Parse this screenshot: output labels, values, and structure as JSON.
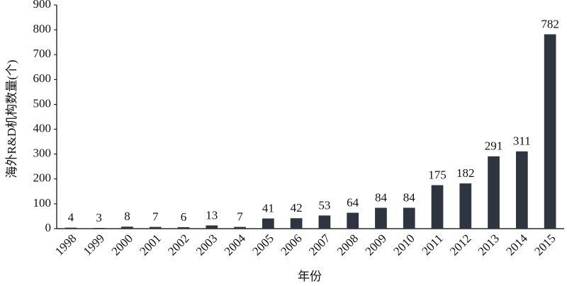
{
  "chart_data": {
    "type": "bar",
    "x_label": "年份",
    "y_label": "海外R&D机构数量(个)",
    "categories": [
      "1998",
      "1999",
      "2000",
      "2001",
      "2002",
      "2003",
      "2004",
      "2005",
      "2006",
      "2007",
      "2008",
      "2009",
      "2010",
      "2011",
      "2012",
      "2013",
      "2014",
      "2015"
    ],
    "values": [
      4,
      3,
      8,
      7,
      6,
      13,
      7,
      41,
      42,
      53,
      64,
      84,
      84,
      175,
      182,
      291,
      311,
      782
    ],
    "color": "#2e353e",
    "ylim": [
      0,
      900
    ],
    "yticks": [
      0,
      100,
      200,
      300,
      400,
      500,
      600,
      700,
      800,
      900
    ],
    "grid": false
  }
}
